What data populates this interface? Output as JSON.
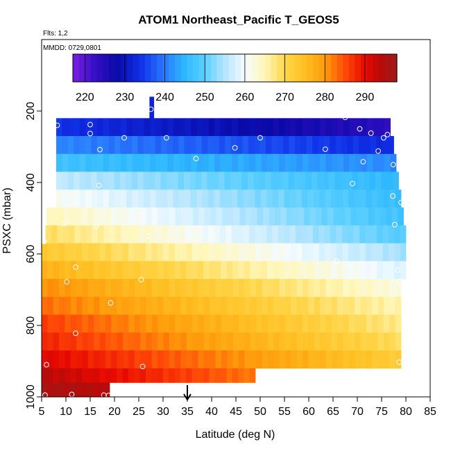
{
  "chart_data": {
    "type": "heatmap",
    "title": "ATOM1 Northeast_Pacific T_GEOS5",
    "subtitle_flts": "Flts: 1,2",
    "subtitle_mmdd": "MMDD: 0729,0801",
    "xlabel": "Latitude (deg N)",
    "ylabel": "PSXC (mbar)",
    "xlim": [
      5,
      85
    ],
    "ylim": [
      1000,
      0
    ],
    "x_ticks": [
      "5",
      "10",
      "15",
      "20",
      "25",
      "30",
      "35",
      "40",
      "45",
      "50",
      "55",
      "60",
      "65",
      "70",
      "75",
      "80",
      "85"
    ],
    "y_ticks": [
      "200",
      "400",
      "600",
      "800",
      "1000"
    ],
    "colorbar": {
      "min": 217,
      "max": 298,
      "ticks": [
        "220",
        "230",
        "240",
        "250",
        "260",
        "270",
        "280",
        "290"
      ],
      "stops": [
        {
          "t": 217,
          "c": "#7b1fe0"
        },
        {
          "t": 222,
          "c": "#3c10c8"
        },
        {
          "t": 228,
          "c": "#0a0aa8"
        },
        {
          "t": 234,
          "c": "#1030e8"
        },
        {
          "t": 240,
          "c": "#2a7cff"
        },
        {
          "t": 245,
          "c": "#2eb8ff"
        },
        {
          "t": 250,
          "c": "#5ccfff"
        },
        {
          "t": 255,
          "c": "#b5e5ff"
        },
        {
          "t": 260,
          "c": "#f4fbff"
        },
        {
          "t": 265,
          "c": "#fff7b8"
        },
        {
          "t": 270,
          "c": "#ffd64a"
        },
        {
          "t": 275,
          "c": "#ffbf22"
        },
        {
          "t": 280,
          "c": "#ff9b0a"
        },
        {
          "t": 285,
          "c": "#ff4a08"
        },
        {
          "t": 290,
          "c": "#e80a00"
        },
        {
          "t": 294,
          "c": "#b80a0a"
        },
        {
          "t": 298,
          "c": "#9c1c1c"
        }
      ]
    },
    "bands": [
      {
        "p_top": 160,
        "p_bot": 220,
        "lat_min": 27.2,
        "lat_max": 28.1,
        "t_start": 232,
        "t_end": 232
      },
      {
        "p_top": 220,
        "p_bot": 270,
        "lat_min": 8,
        "lat_max": 76.8,
        "t_start": 234,
        "t_end": 224
      },
      {
        "p_top": 270,
        "p_bot": 320,
        "lat_min": 8,
        "lat_max": 77.5,
        "t_start": 241,
        "t_end": 233
      },
      {
        "p_top": 320,
        "p_bot": 370,
        "lat_min": 8,
        "lat_max": 78,
        "t_start": 247,
        "t_end": 241
      },
      {
        "p_top": 370,
        "p_bot": 420,
        "lat_min": 8,
        "lat_max": 78.5,
        "t_start": 256,
        "t_end": 245
      },
      {
        "p_top": 420,
        "p_bot": 470,
        "lat_min": 8,
        "lat_max": 79,
        "t_start": 261,
        "t_end": 246
      },
      {
        "p_top": 470,
        "p_bot": 520,
        "lat_min": 6,
        "lat_max": 79.5,
        "t_start": 265,
        "t_end": 247
      },
      {
        "p_top": 520,
        "p_bot": 570,
        "lat_min": 5.8,
        "lat_max": 80,
        "t_start": 269,
        "t_end": 249
      },
      {
        "p_top": 570,
        "p_bot": 620,
        "lat_min": 5,
        "lat_max": 80,
        "t_start": 273,
        "t_end": 254
      },
      {
        "p_top": 620,
        "p_bot": 670,
        "lat_min": 5,
        "lat_max": 80,
        "t_start": 277,
        "t_end": 258
      },
      {
        "p_top": 670,
        "p_bot": 720,
        "lat_min": 5,
        "lat_max": 79,
        "t_start": 281,
        "t_end": 262
      },
      {
        "p_top": 720,
        "p_bot": 770,
        "lat_min": 5,
        "lat_max": 79,
        "t_start": 283,
        "t_end": 265
      },
      {
        "p_top": 770,
        "p_bot": 820,
        "lat_min": 5,
        "lat_max": 79,
        "t_start": 286,
        "t_end": 267
      },
      {
        "p_top": 820,
        "p_bot": 870,
        "lat_min": 5,
        "lat_max": 79,
        "t_start": 288,
        "t_end": 269
      },
      {
        "p_top": 870,
        "p_bot": 920,
        "lat_min": 5,
        "lat_max": 79,
        "t_start": 291,
        "t_end": 272
      },
      {
        "p_top": 920,
        "p_bot": 960,
        "lat_min": 5,
        "lat_max": 49,
        "t_start": 294,
        "t_end": 282
      },
      {
        "p_top": 960,
        "p_bot": 1000,
        "lat_min": 5,
        "lat_max": 19,
        "t_start": 296,
        "t_end": 294
      }
    ],
    "points": [
      {
        "x": 8.2,
        "y": 240
      },
      {
        "x": 15,
        "y": 238
      },
      {
        "x": 15,
        "y": 263
      },
      {
        "x": 22,
        "y": 275
      },
      {
        "x": 17,
        "y": 308
      },
      {
        "x": 30.7,
        "y": 275
      },
      {
        "x": 27.5,
        "y": 195
      },
      {
        "x": 44.8,
        "y": 303
      },
      {
        "x": 50,
        "y": 275
      },
      {
        "x": 36.8,
        "y": 333
      },
      {
        "x": 63.4,
        "y": 307
      },
      {
        "x": 67.5,
        "y": 218
      },
      {
        "x": 70.5,
        "y": 250
      },
      {
        "x": 72.8,
        "y": 262
      },
      {
        "x": 74.3,
        "y": 312
      },
      {
        "x": 75.4,
        "y": 275
      },
      {
        "x": 76.2,
        "y": 266
      },
      {
        "x": 77.4,
        "y": 350
      },
      {
        "x": 71.2,
        "y": 342
      },
      {
        "x": 69,
        "y": 403
      },
      {
        "x": 16.8,
        "y": 408
      },
      {
        "x": 77.3,
        "y": 438
      },
      {
        "x": 79,
        "y": 456
      },
      {
        "x": 77.7,
        "y": 518
      },
      {
        "x": 9.6,
        "y": 515
      },
      {
        "x": 16.2,
        "y": 523
      },
      {
        "x": 27,
        "y": 550
      },
      {
        "x": 5.5,
        "y": 565
      },
      {
        "x": 12,
        "y": 637
      },
      {
        "x": 10.2,
        "y": 678
      },
      {
        "x": 25.5,
        "y": 672
      },
      {
        "x": 65.7,
        "y": 620
      },
      {
        "x": 78.3,
        "y": 645
      },
      {
        "x": 78.7,
        "y": 678
      },
      {
        "x": 19.2,
        "y": 737
      },
      {
        "x": 12,
        "y": 822
      },
      {
        "x": 78.6,
        "y": 903
      },
      {
        "x": 6,
        "y": 910
      },
      {
        "x": 25.8,
        "y": 915
      },
      {
        "x": 5.7,
        "y": 995
      },
      {
        "x": 11.2,
        "y": 993
      },
      {
        "x": 17.8,
        "y": 995
      },
      {
        "x": 18.8,
        "y": 996
      }
    ],
    "marker_latitude": 35
  }
}
